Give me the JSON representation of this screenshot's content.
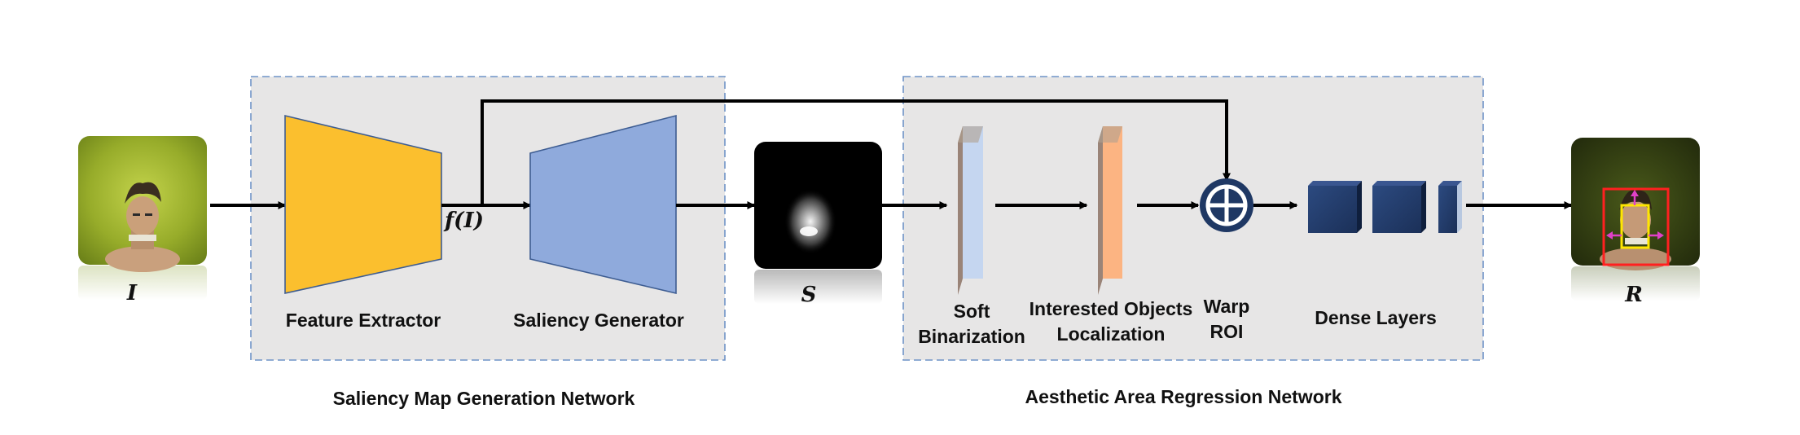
{
  "modules": {
    "saliency_network": {
      "title": "Saliency Map Generation Network",
      "feature_extractor_label": "Feature Extractor",
      "saliency_generator_label": "Saliency Generator",
      "feature_symbol": "f(I)"
    },
    "aesthetic_network": {
      "title": "Aesthetic Area Regression Network",
      "soft_binarization_label": [
        "Soft",
        "Binarization"
      ],
      "localization_label": [
        "Interested Objects",
        "Localization"
      ],
      "warp_roi_label": [
        "Warp",
        "ROI"
      ],
      "dense_layers_label": "Dense Layers"
    }
  },
  "images": {
    "input_label": "I",
    "saliency_label": "S",
    "result_label": "R"
  },
  "colors": {
    "feature_extractor": "#fbbf2e",
    "saliency_generator": "#8faadc",
    "module_background": "#e7e6e6",
    "module_border": "#6f93c7",
    "soft_binarization_plane": "#c5d6f0",
    "localization_plane": "#fcb482",
    "warp_roi": "#1f3864",
    "dense_layers": "#203864",
    "crop_box_outer": "#ff2020",
    "crop_box_inner": "#ffe600",
    "crop_arrows": "#e040c8"
  },
  "icons": {
    "warp_roi": "circled-plus-icon"
  }
}
